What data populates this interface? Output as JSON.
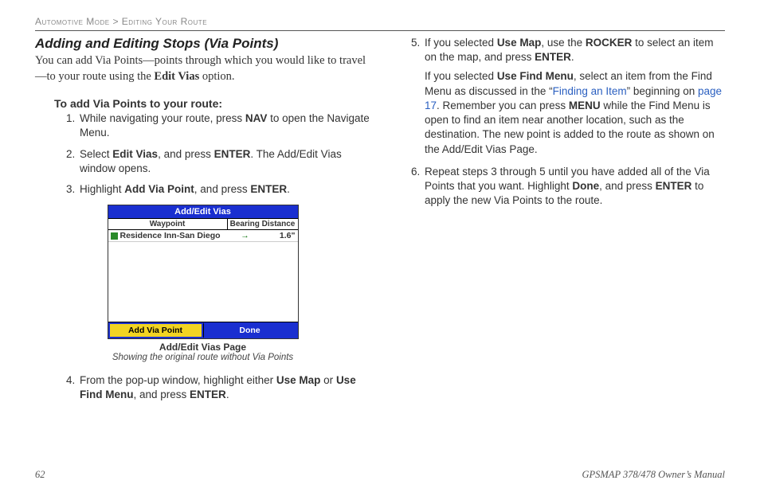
{
  "breadcrumb": {
    "section": "Automotive Mode",
    "sep": ">",
    "sub": "Editing Your Route"
  },
  "left": {
    "heading": "Adding and Editing Stops (Via Points)",
    "intro_pre": "You can add Via Points—points through which you would like to travel—to your route using the ",
    "intro_bold": "Edit Vias",
    "intro_post": " option.",
    "subhead": "To add Via Points to your route:",
    "steps": {
      "s1_a": "While navigating your route, press ",
      "s1_b1": "NAV",
      "s1_c": " to open the Navigate Menu.",
      "s2_a": "Select ",
      "s2_b1": "Edit Vias",
      "s2_c": ", and press ",
      "s2_b2": "ENTER",
      "s2_d": ". The Add/Edit Vias window opens.",
      "s3_a": "Highlight ",
      "s3_b1": "Add Via Point",
      "s3_c": ", and press ",
      "s3_b2": "ENTER",
      "s3_d": ".",
      "s4_a": "From the pop-up window, highlight either ",
      "s4_b1": "Use Map",
      "s4_c": " or ",
      "s4_b2": "Use Find Menu",
      "s4_d": ", and press ",
      "s4_b3": "ENTER",
      "s4_e": "."
    },
    "device": {
      "title": "Add/Edit Vias",
      "col_wp": "Waypoint",
      "col_bd": "Bearing  Distance",
      "row_wp": "Residence Inn-San Diego",
      "row_bearing": "→",
      "row_dist": "1.6\"",
      "btn_sel": "Add Via Point",
      "btn_done": "Done",
      "caption_bold": "Add/Edit Vias Page",
      "caption_ital": "Showing the original route without Via Points",
      "colors": {
        "title_bg": "#1a2fd0",
        "sel_bg": "#f2d422"
      }
    }
  },
  "right": {
    "steps": {
      "s5_a": "If you selected ",
      "s5_b1": "Use Map",
      "s5_b": ", use the ",
      "s5_b2": "ROCKER",
      "s5_c": " to select an item on the map, and press ",
      "s5_b3": "ENTER",
      "s5_d": ".",
      "s5p_a": "If you selected ",
      "s5p_b1": "Use Find Menu",
      "s5p_b": ", select an item from the Find Menu as discussed in the “",
      "s5p_link1": "Finding an Item",
      "s5p_c": "” beginning on ",
      "s5p_link2": "page 17",
      "s5p_d": ". Remember you can press ",
      "s5p_b2": "MENU",
      "s5p_e": " while the Find Menu is open to find an item near another location, such as the destination. The new point is added to the route as shown on the Add/Edit Vias Page.",
      "s6_a": "Repeat steps 3 through 5 until you have added all of the Via Points that you want. Highlight ",
      "s6_b1": "Done",
      "s6_b": ", and press ",
      "s6_b2": "ENTER",
      "s6_c": " to apply the new Via Points to the route."
    }
  },
  "footer": {
    "page": "62",
    "manual": "GPSMAP 378/478 Owner’s Manual"
  }
}
